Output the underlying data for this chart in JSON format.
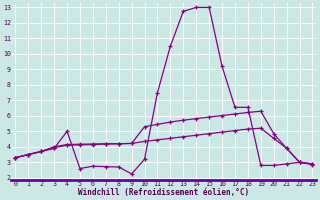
{
  "xlabel": "Windchill (Refroidissement éolien,°C)",
  "bg_color": "#cce8e4",
  "plot_bg_color": "#cce8e4",
  "border_color": "#6600aa",
  "line_color": "#880088",
  "grid_color": "#ffffff",
  "tick_color": "#550055",
  "xlim_left": 0,
  "xlim_right": 23,
  "ylim_bottom": 2,
  "ylim_top": 13,
  "xticks": [
    0,
    1,
    2,
    3,
    4,
    5,
    6,
    7,
    8,
    9,
    10,
    11,
    12,
    13,
    14,
    15,
    16,
    17,
    18,
    19,
    20,
    21,
    22,
    23
  ],
  "yticks": [
    2,
    3,
    4,
    5,
    6,
    7,
    8,
    9,
    10,
    11,
    12,
    13
  ],
  "line1_x": [
    0,
    1,
    2,
    3,
    4,
    5,
    6,
    7,
    8,
    9,
    10,
    11,
    12,
    13,
    14,
    15,
    16,
    17,
    18,
    19,
    20,
    21,
    22,
    23
  ],
  "line1_y": [
    3.3,
    3.5,
    3.7,
    4.0,
    4.15,
    4.17,
    4.18,
    4.2,
    4.2,
    4.22,
    4.35,
    4.45,
    4.55,
    4.65,
    4.75,
    4.85,
    4.95,
    5.05,
    5.15,
    5.2,
    4.55,
    3.9,
    3.0,
    2.9
  ],
  "line2_x": [
    0,
    1,
    2,
    3,
    4,
    5,
    6,
    7,
    8,
    9,
    10,
    11,
    12,
    13,
    14,
    15,
    16,
    17,
    18,
    19,
    20,
    21,
    22,
    23
  ],
  "line2_y": [
    3.3,
    3.5,
    3.7,
    3.95,
    4.1,
    4.13,
    4.15,
    4.18,
    4.2,
    4.22,
    5.3,
    5.45,
    5.6,
    5.72,
    5.82,
    5.92,
    6.02,
    6.12,
    6.22,
    6.3,
    4.85,
    3.9,
    3.0,
    2.9
  ],
  "line3_x": [
    0,
    1,
    2,
    3,
    4,
    5,
    6,
    7,
    8,
    9,
    10,
    11,
    12,
    13,
    14,
    15,
    16,
    17,
    18,
    19,
    20,
    21,
    22,
    23
  ],
  "line3_y": [
    3.3,
    3.5,
    3.7,
    3.9,
    5.0,
    2.6,
    2.75,
    2.72,
    2.7,
    2.25,
    3.2,
    7.5,
    10.5,
    12.75,
    13.0,
    13.0,
    9.2,
    6.55,
    6.55,
    2.8,
    2.8,
    2.9,
    3.0,
    2.85
  ],
  "bottom_bar_color": "#6600aa",
  "xlabel_fontsize": 5.5,
  "tick_fontsize": 4.8,
  "figsize": [
    3.2,
    2.0
  ],
  "dpi": 100
}
